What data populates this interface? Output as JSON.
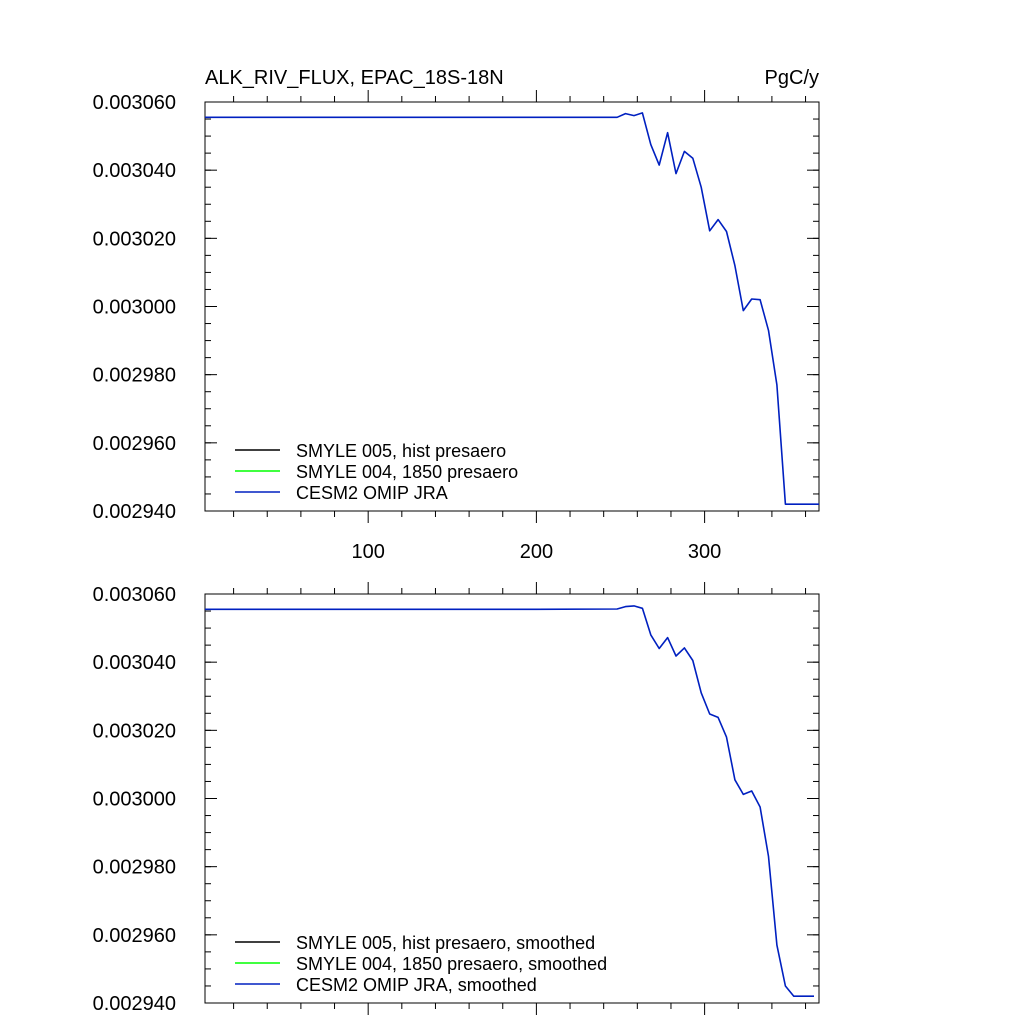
{
  "chart_data": [
    {
      "type": "line",
      "title": "ALK_RIV_FLUX, EPAC_18S-18N",
      "units": "PgC/y",
      "xlim": [
        3,
        368
      ],
      "ylim": [
        0.00294,
        0.00306
      ],
      "xticks": [
        100,
        200,
        300
      ],
      "xtick_labels": [
        "100",
        "200",
        "300"
      ],
      "yticks": [
        0.00294,
        0.00296,
        0.00298,
        0.003,
        0.00302,
        0.00304,
        0.00306
      ],
      "ytick_labels": [
        "0.002940",
        "0.002960",
        "0.002980",
        "0.003000",
        "0.003020",
        "0.003040",
        "0.003060"
      ],
      "legend_position": "bottom-left",
      "grid": false,
      "series": [
        {
          "name": "SMYLE 005, hist presaero",
          "color": "#000000",
          "x": [],
          "y": []
        },
        {
          "name": "SMYLE 004, 1850 presaero",
          "color": "#00ff00",
          "x": [],
          "y": []
        },
        {
          "name": "CESM2 OMIP JRA",
          "color": "#0020c0",
          "x": [
            3,
            100,
            200,
            248,
            253,
            258,
            263,
            268,
            273,
            278,
            283,
            288,
            293,
            298,
            303,
            308,
            313,
            318,
            323,
            328,
            333,
            338,
            343,
            348,
            353,
            358,
            363,
            368
          ],
          "y": [
            0.0030555,
            0.0030555,
            0.0030555,
            0.0030555,
            0.0030566,
            0.003056,
            0.0030568,
            0.0030475,
            0.0030415,
            0.003051,
            0.003039,
            0.0030455,
            0.0030435,
            0.003035,
            0.0030222,
            0.0030255,
            0.003022,
            0.003012,
            0.0029988,
            0.0030022,
            0.003002,
            0.002993,
            0.002977,
            0.002942,
            0.002942,
            0.002942,
            0.002942,
            0.002942
          ]
        }
      ]
    },
    {
      "type": "line",
      "title": "",
      "xlim": [
        3,
        368
      ],
      "ylim": [
        0.00294,
        0.00306
      ],
      "xticks": [
        100,
        200,
        300
      ],
      "yticks": [
        0.00294,
        0.00296,
        0.00298,
        0.003,
        0.00302,
        0.00304,
        0.00306
      ],
      "ytick_labels": [
        "0.002940",
        "0.002960",
        "0.002980",
        "0.003000",
        "0.003020",
        "0.003040",
        "0.003060"
      ],
      "legend_position": "bottom-left",
      "grid": false,
      "series": [
        {
          "name": "SMYLE 005, hist presaero, smoothed",
          "color": "#000000",
          "x": [],
          "y": []
        },
        {
          "name": "SMYLE 004, 1850 presaero, smoothed",
          "color": "#00ff00",
          "x": [],
          "y": []
        },
        {
          "name": "CESM2 OMIP JRA, smoothed",
          "color": "#0020c0",
          "x": [
            3,
            100,
            200,
            248,
            253,
            258,
            263,
            268,
            273,
            278,
            283,
            288,
            293,
            298,
            303,
            308,
            313,
            318,
            323,
            328,
            333,
            338,
            343,
            348,
            353,
            358,
            363,
            365
          ],
          "y": [
            0.0030555,
            0.0030555,
            0.0030555,
            0.0030556,
            0.0030563,
            0.0030565,
            0.0030558,
            0.003048,
            0.003044,
            0.0030472,
            0.0030418,
            0.0030442,
            0.0030405,
            0.003031,
            0.0030248,
            0.0030238,
            0.003018,
            0.0030055,
            0.0030012,
            0.0030022,
            0.0029975,
            0.002983,
            0.002957,
            0.002945,
            0.002942,
            0.002942,
            0.002942,
            0.002942
          ]
        }
      ]
    }
  ]
}
